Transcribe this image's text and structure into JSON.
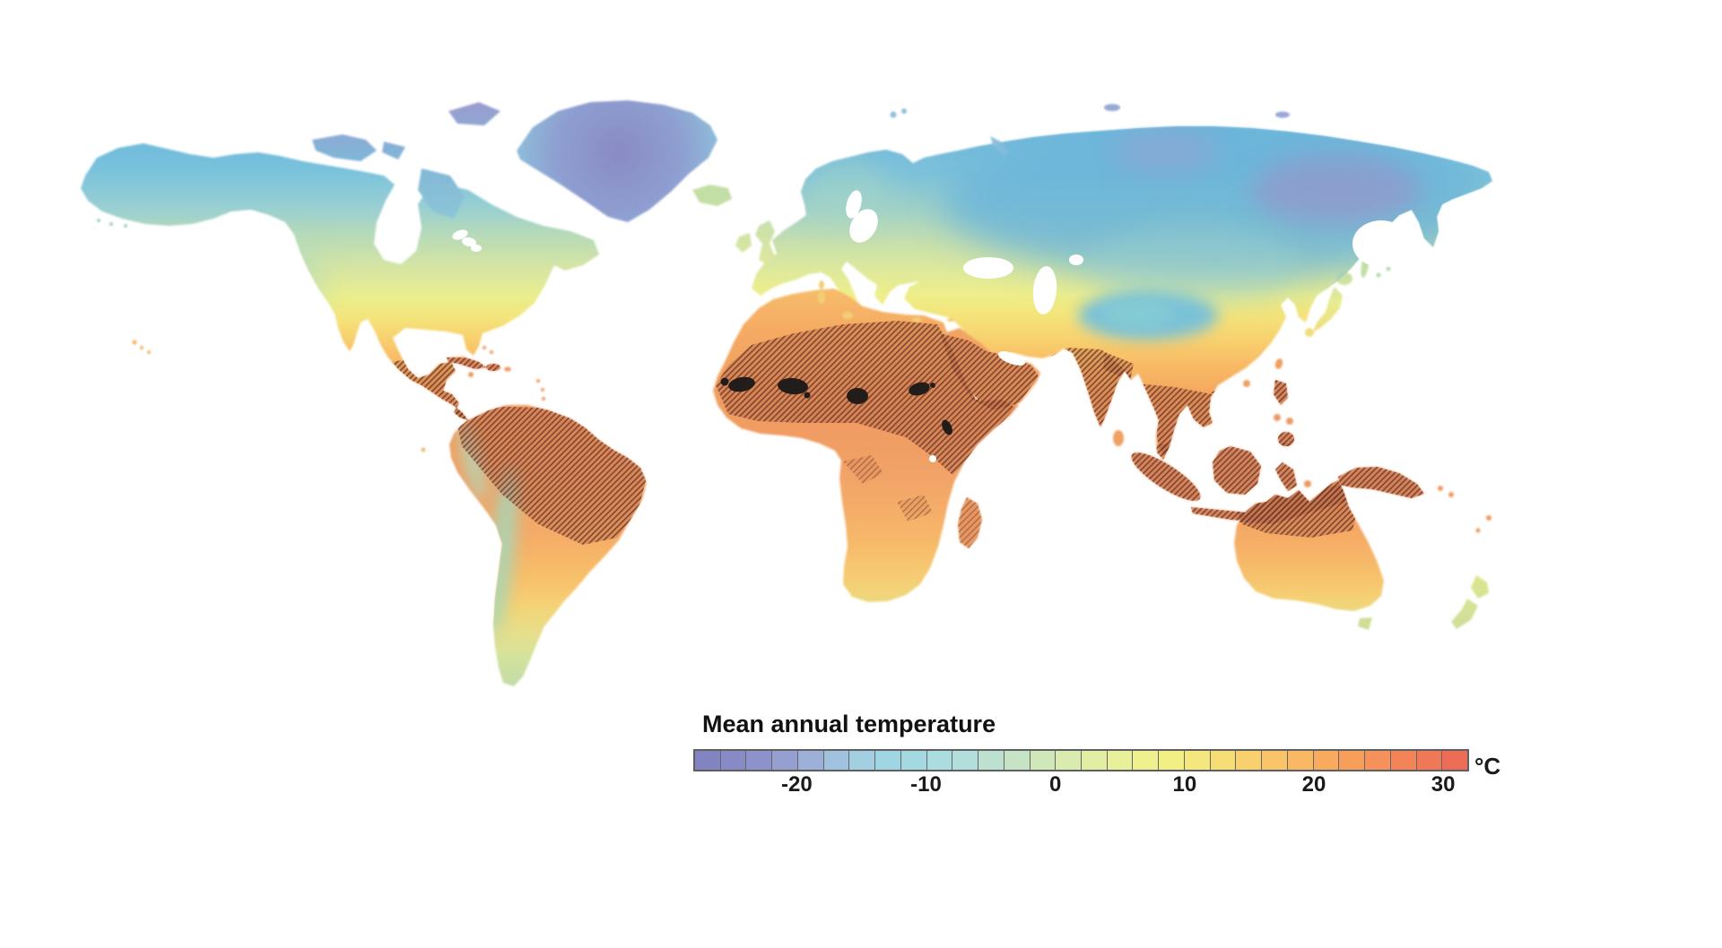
{
  "legend": {
    "title": "Mean annual temperature",
    "unit": "°C",
    "tick_labels": [
      "-20",
      "-10",
      "0",
      "10",
      "20",
      "30"
    ],
    "tick_values": [
      -20,
      -10,
      0,
      10,
      20,
      30
    ],
    "range_min_c": -28,
    "range_max_c": 32,
    "segment_step_c": 2,
    "segment_colors": [
      "#8284c1",
      "#878ac5",
      "#8d92ca",
      "#95a0d1",
      "#9db0d8",
      "#a1c2de",
      "#a2cfe2",
      "#a0d6e3",
      "#a4d9e2",
      "#aadce0",
      "#b2dedb",
      "#bce1d1",
      "#c6e4c5",
      "#d0e7ba",
      "#d9ebaf",
      "#e1eea4",
      "#e8f099",
      "#eef18e",
      "#f2ef85",
      "#f5e77d",
      "#f7dd75",
      "#f8d16e",
      "#f9c568",
      "#f9b863",
      "#f8ab5f",
      "#f79e5b",
      "#f5915a",
      "#f28458",
      "#ef7857",
      "#ec6c55"
    ]
  },
  "map": {
    "type": "world-temperature-map",
    "hatched_regions": [
      "Central America and Caribbean",
      "Tropical South America (Amazon)",
      "Sahara and Sahel",
      "Horn of Africa",
      "Arabian Peninsula",
      "India and South Asia",
      "Indochina and southern China",
      "Maritime Southeast Asia and New Guinea",
      "Philippines",
      "Northern Australia"
    ],
    "dark_patches_region": "Sahel belt",
    "colors": {
      "background": "#ffffff",
      "hatch_line": "#703426",
      "hatch_shade": "#9a543a",
      "dark_patch": "#221d1a",
      "cold_extreme": "#8a8bc4",
      "warm_extreme": "#ef7857"
    }
  }
}
